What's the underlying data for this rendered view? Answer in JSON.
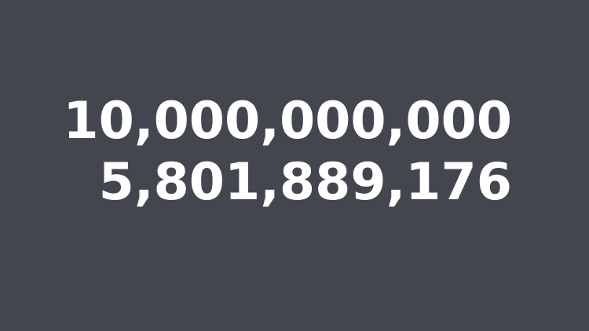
{
  "background_color": "#44464f",
  "text_color": "#ffffff",
  "numbers": {
    "first": "10,000,000,000",
    "second": "5,801,889,176"
  }
}
